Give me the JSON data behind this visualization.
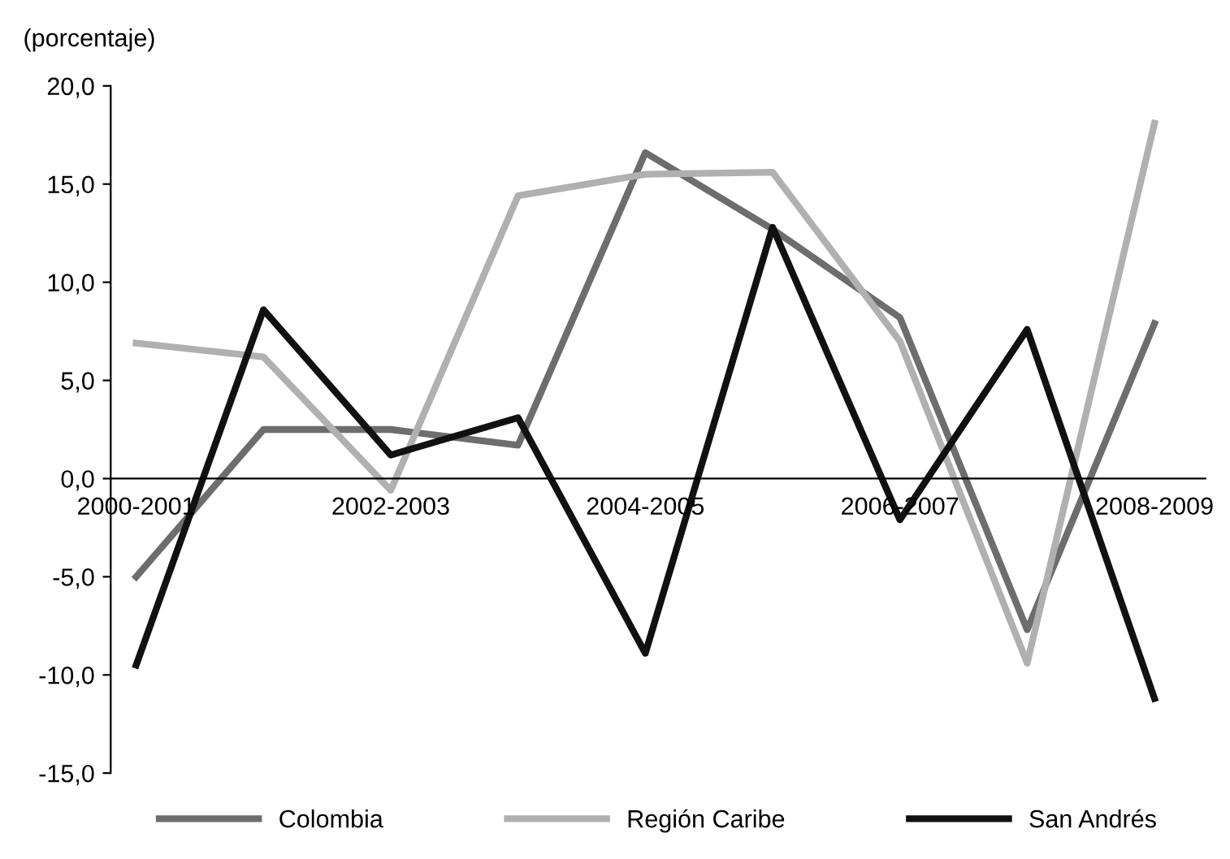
{
  "chart_data": {
    "type": "line",
    "ylabel": "(porcentaje)",
    "categories": [
      "2000-2001",
      null,
      "2002-2003",
      null,
      "2004-2005",
      null,
      "2006-2007",
      null,
      "2008-2009"
    ],
    "series": [
      {
        "name": "Colombia",
        "color": "#6d6d6d",
        "values": [
          -5.0,
          2.5,
          2.5,
          1.7,
          16.6,
          12.7,
          8.2,
          -7.7,
          7.9
        ]
      },
      {
        "name": "Región Caribe",
        "color": "#b0b0b0",
        "values": [
          6.9,
          6.2,
          -0.6,
          14.4,
          15.5,
          15.6,
          7.0,
          -9.4,
          18.1
        ]
      },
      {
        "name": "San Andrés",
        "color": "#111111",
        "values": [
          -9.5,
          8.6,
          1.2,
          3.1,
          -8.9,
          12.8,
          -2.1,
          7.6,
          -11.2
        ]
      }
    ],
    "ylim": [
      -15,
      20
    ],
    "yticks": [
      {
        "value": -15,
        "label": "-15,0"
      },
      {
        "value": -10,
        "label": "-10,0"
      },
      {
        "value": -5,
        "label": "-5,0"
      },
      {
        "value": 0,
        "label": "0,0"
      },
      {
        "value": 5,
        "label": "5,0"
      },
      {
        "value": 10,
        "label": "10,0"
      },
      {
        "value": 15,
        "label": "15,0"
      },
      {
        "value": 20,
        "label": "20,0"
      }
    ],
    "grid": false,
    "legend": "bottom",
    "marker": "none",
    "line_style": "solid"
  }
}
